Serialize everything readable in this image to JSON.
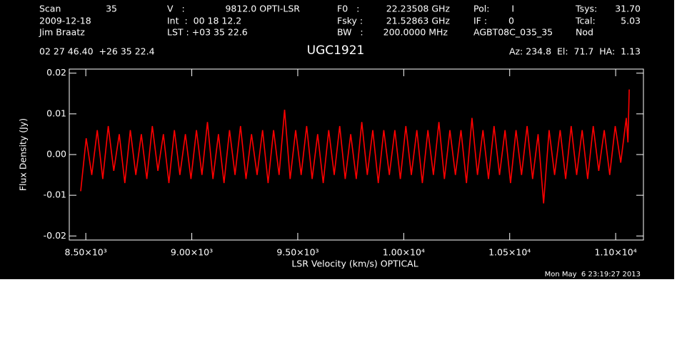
{
  "chart_data": {
    "type": "line",
    "header": [
      "Scan",
      "35",
      "V   :",
      "9812.0 OPTI-LSR",
      "F0   :",
      "22.23508 GHz",
      "Pol:",
      "I",
      "Tsys:",
      "31.70",
      "2009-12-18",
      "Int  :  00 18 12.2",
      "Fsky :",
      "21.52863 GHz",
      "IF :",
      "0",
      "Tcal:",
      "5.03",
      "Jim Braatz",
      "LST : +03 35 22.6",
      "BW   :",
      "200.0000 MHz",
      "AGBT08C_035_35",
      "Nod",
      "02 27 46.40  +26 35 22.4",
      "Az: 234.8  El:  71.7  HA:  1.13"
    ],
    "title": "UGC1921",
    "timestamp": "Mon May  6 23:19:27 2013",
    "x_label": "LSR Velocity (km/s) OPTICAL",
    "y_label": "Flux Density (Jy)",
    "xlim": [
      8422,
      11131
    ],
    "ylim": [
      -0.021,
      0.021
    ],
    "xticks": [
      {
        "value": 8500,
        "label": "8.50×10³"
      },
      {
        "value": 9000,
        "label": "9.00×10³"
      },
      {
        "value": 9500,
        "label": "9.50×10³"
      },
      {
        "value": 10000,
        "label": "1.00×10⁴"
      },
      {
        "value": 10500,
        "label": "1.05×10⁴"
      },
      {
        "value": 11000,
        "label": "1.10×10⁴"
      }
    ],
    "yticks": [
      -0.02,
      -0.01,
      {
        "value": 0,
        "label": "0.00"
      },
      0.01,
      0.02
    ],
    "series": [
      {
        "color": "#ff0000",
        "x": [
          8476,
          8502,
          8528,
          8554,
          8580,
          8606,
          8632,
          8658,
          8684,
          8710,
          8736,
          8762,
          8788,
          8814,
          8840,
          8866,
          8892,
          8918,
          8944,
          8970,
          8996,
          9022,
          9048,
          9074,
          9100,
          9126,
          9152,
          9178,
          9204,
          9230,
          9256,
          9282,
          9308,
          9334,
          9360,
          9386,
          9412,
          9438,
          9464,
          9490,
          9516,
          9542,
          9568,
          9594,
          9620,
          9646,
          9672,
          9698,
          9724,
          9750,
          9776,
          9802,
          9828,
          9854,
          9880,
          9906,
          9932,
          9958,
          9984,
          10010,
          10036,
          10062,
          10088,
          10114,
          10140,
          10166,
          10192,
          10218,
          10244,
          10270,
          10296,
          10322,
          10348,
          10374,
          10400,
          10426,
          10452,
          10478,
          10504,
          10530,
          10556,
          10582,
          10608,
          10634,
          10660,
          10686,
          10712,
          10738,
          10764,
          10790,
          10816,
          10842,
          10868,
          10894,
          10920,
          10946,
          10972,
          10998,
          11024,
          11050,
          11058,
          11064
        ],
        "values": [
          -0.009,
          0.004,
          -0.005,
          0.006,
          -0.006,
          0.007,
          -0.004,
          0.005,
          -0.007,
          0.006,
          -0.005,
          0.005,
          -0.006,
          0.007,
          -0.004,
          0.005,
          -0.007,
          0.006,
          -0.005,
          0.005,
          -0.006,
          0.006,
          -0.005,
          0.008,
          -0.006,
          0.005,
          -0.007,
          0.006,
          -0.005,
          0.007,
          -0.006,
          0.005,
          -0.005,
          0.006,
          -0.007,
          0.006,
          -0.005,
          0.011,
          -0.006,
          0.006,
          -0.005,
          0.007,
          -0.006,
          0.005,
          -0.007,
          0.006,
          -0.005,
          0.007,
          -0.006,
          0.005,
          -0.006,
          0.008,
          -0.005,
          0.006,
          -0.007,
          0.006,
          -0.005,
          0.006,
          -0.006,
          0.007,
          -0.005,
          0.006,
          -0.007,
          0.006,
          -0.005,
          0.008,
          -0.006,
          0.006,
          -0.005,
          0.006,
          -0.007,
          0.009,
          -0.005,
          0.006,
          -0.006,
          0.007,
          -0.005,
          0.006,
          -0.007,
          0.006,
          -0.005,
          0.007,
          -0.006,
          0.005,
          -0.012,
          0.006,
          -0.005,
          0.006,
          -0.006,
          0.007,
          -0.005,
          0.006,
          -0.006,
          0.007,
          -0.004,
          0.006,
          -0.005,
          0.007,
          -0.002,
          0.009,
          0.003,
          0.016
        ]
      }
    ]
  }
}
